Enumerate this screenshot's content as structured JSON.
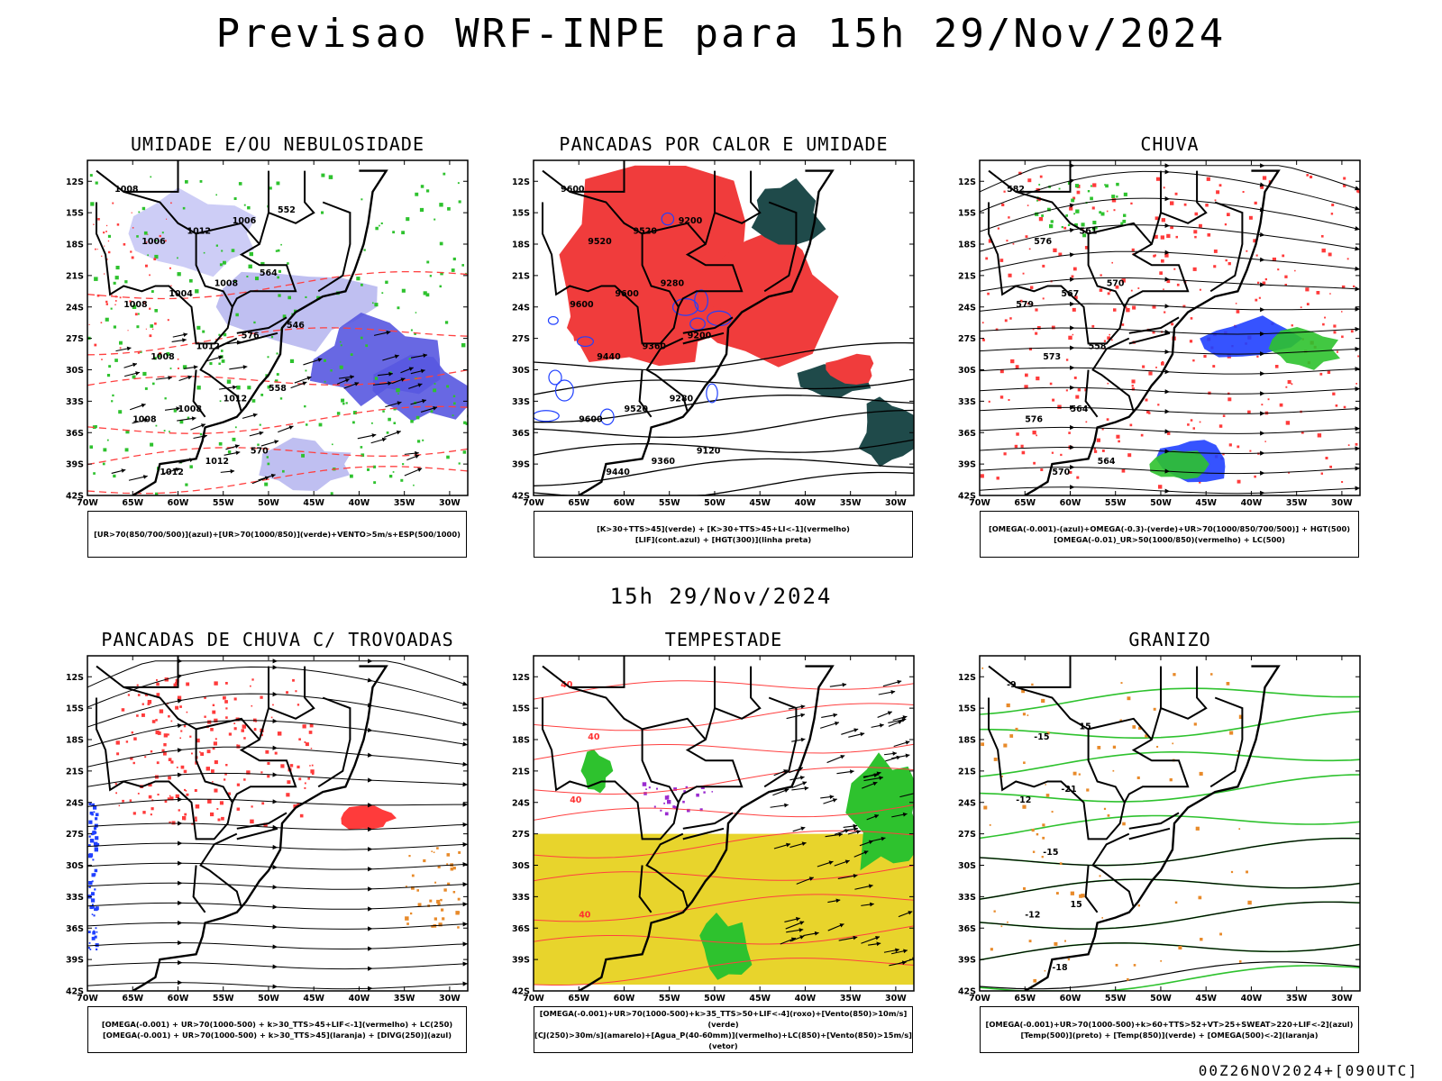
{
  "main_title": "Previsao WRF-INPE  para 15h 29/Nov/2024",
  "middle_title": "15h 29/Nov/2024",
  "footer_text": "00Z26NOV2024+[090UTC]",
  "chart_data": [
    {
      "type": "heatmap",
      "title": "UMIDADE E/OU NEBULOSIDADE",
      "lat_ticks": [
        "12S",
        "15S",
        "18S",
        "21S",
        "24S",
        "27S",
        "30S",
        "33S",
        "36S",
        "39S",
        "42S"
      ],
      "lon_ticks": [
        "70W",
        "65W",
        "60W",
        "55W",
        "50W",
        "45W",
        "40W",
        "35W",
        "30W"
      ],
      "legend": [
        "[UR>70(850/700/500)](azul)+[UR>70(1000/850)](verde)+VENTO>5m/s+ESP(500/1000)"
      ],
      "contour_labels": [
        "1008",
        "1008",
        "1008",
        "1006",
        "1008",
        "1012",
        "1004",
        "1008",
        "1012",
        "1012",
        "1012",
        "1008",
        "1012",
        "1006",
        "576",
        "570",
        "564",
        "558",
        "552",
        "546"
      ]
    },
    {
      "type": "heatmap",
      "title": "PANCADAS POR CALOR E UMIDADE",
      "lat_ticks": [
        "12S",
        "15S",
        "18S",
        "21S",
        "24S",
        "27S",
        "30S",
        "33S",
        "36S",
        "39S",
        "42S"
      ],
      "lon_ticks": [
        "70W",
        "65W",
        "60W",
        "55W",
        "50W",
        "45W",
        "40W",
        "35W",
        "30W"
      ],
      "legend": [
        "[K>30+TTS>45](verde) + [K>30+TTS>45+LI<-1](vermelho)",
        "[LIF](cont.azul) + [HGT(300)](linha preta)"
      ],
      "contour_labels": [
        "9600",
        "9600",
        "9600",
        "9520",
        "9440",
        "9440",
        "9600",
        "9520",
        "9520",
        "9360",
        "9360",
        "9280",
        "9280",
        "9200",
        "9200",
        "9120"
      ]
    },
    {
      "type": "heatmap",
      "title": "CHUVA",
      "lat_ticks": [
        "12S",
        "15S",
        "18S",
        "21S",
        "24S",
        "27S",
        "30S",
        "33S",
        "36S",
        "39S",
        "42S"
      ],
      "lon_ticks": [
        "70W",
        "65W",
        "60W",
        "55W",
        "50W",
        "45W",
        "40W",
        "35W",
        "30W"
      ],
      "legend": [
        "[OMEGA(-0.001)-(azul)+OMEGA(-0.3)-(verde)+UR>70(1000/850/700/500)] + HGT(500)",
        "[OMEGA(-0.01)_UR>50(1000/850)(vermelho) + LC(500)"
      ],
      "contour_labels": [
        "582",
        "579",
        "576",
        "576",
        "573",
        "570",
        "567",
        "564",
        "561",
        "558",
        "564",
        "570"
      ]
    },
    {
      "type": "heatmap",
      "title": "PANCADAS DE CHUVA C/ TROVOADAS",
      "lat_ticks": [
        "12S",
        "15S",
        "18S",
        "21S",
        "24S",
        "27S",
        "30S",
        "33S",
        "36S",
        "39S",
        "42S"
      ],
      "lon_ticks": [
        "70W",
        "65W",
        "60W",
        "55W",
        "50W",
        "45W",
        "40W",
        "35W",
        "30W"
      ],
      "legend": [
        "[OMEGA(-0.001) + UR>70(1000-500) + k>30_TTS>45+LIF<-1](vermelho) + LC(250)",
        "[OMEGA(-0.001) + UR>70(1000-500) + k>30_TTS>45](laranja) + [DIVG(250)](azul)"
      ],
      "contour_labels": []
    },
    {
      "type": "heatmap",
      "title": "TEMPESTADE",
      "lat_ticks": [
        "12S",
        "15S",
        "18S",
        "21S",
        "24S",
        "27S",
        "30S",
        "33S",
        "36S",
        "39S",
        "42S"
      ],
      "lon_ticks": [
        "70W",
        "65W",
        "60W",
        "55W",
        "50W",
        "45W",
        "40W",
        "35W",
        "30W"
      ],
      "legend": [
        "[OMEGA(-0.001)+UR>70(1000-500)+k>35_TTS>50+LIF<-4](roxo)+[Vento(850)>10m/s](verde)",
        "[CJ(250)>30m/s](amarelo)+[Agua_P(40-60mm)](vermelho)+LC(850)+[Vento(850)>15m/s](vetor)"
      ],
      "contour_labels": [
        "40",
        "40",
        "40",
        "40"
      ]
    },
    {
      "type": "heatmap",
      "title": "GRANIZO",
      "lat_ticks": [
        "12S",
        "15S",
        "18S",
        "21S",
        "24S",
        "27S",
        "30S",
        "33S",
        "36S",
        "39S",
        "42S"
      ],
      "lon_ticks": [
        "70W",
        "65W",
        "60W",
        "55W",
        "50W",
        "45W",
        "40W",
        "35W",
        "30W"
      ],
      "legend": [
        "[OMEGA(-0.001)+UR>70(1000-500)+k>60+TTS>52+VT>25+SWEAT>220+LIF<-2](azul)",
        "[Temp(500)](preto) + [Temp(850)](verde) + [OMEGA(500)<-2](laranja)"
      ],
      "contour_labels": [
        "-9",
        "-12",
        "-12",
        "-15",
        "-15",
        "-18",
        "-21",
        "15",
        "15"
      ]
    }
  ]
}
